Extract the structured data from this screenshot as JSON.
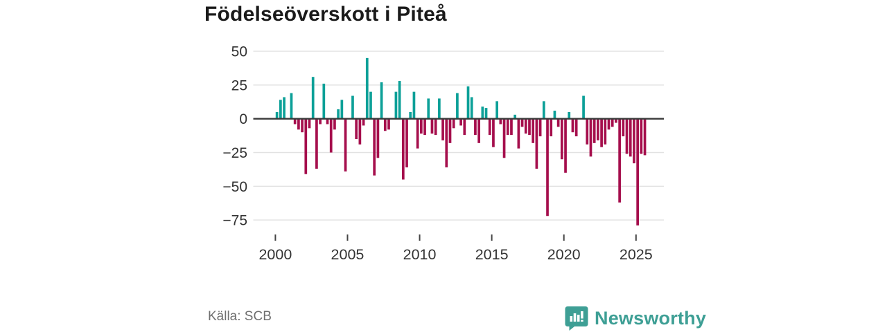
{
  "page": {
    "background": "#ffffff"
  },
  "header": {
    "title": "Födelseöverskott i Piteå"
  },
  "footer": {
    "source_label": "Källa: SCB",
    "brand_name": "Newsworthy",
    "brand_icon": "newsworthy-bar-chart-bubble-icon",
    "brand_color": "#3e9f95"
  },
  "chart_data": {
    "type": "bar",
    "title": "Födelseöverskott i Piteå",
    "grid": "horizontal",
    "legend": "none",
    "positive_color": "#0ca098",
    "negative_color": "#a50e4c",
    "axis_line_color": "#3a3a3a",
    "gridline_color": "#e2e2e2",
    "tick_label_color": "#333333",
    "ylim": [
      -85,
      55
    ],
    "y_ticks": [
      50,
      25,
      0,
      -25,
      -50,
      -75
    ],
    "y_tick_labels": [
      "50",
      "25",
      "0",
      "−25",
      "−50",
      "−75"
    ],
    "x_ticks": [
      2000,
      2005,
      2010,
      2015,
      2020,
      2025
    ],
    "x_tick_labels": [
      "2000",
      "2005",
      "2010",
      "2015",
      "2020",
      "2025"
    ],
    "categories": [
      "2000Q1",
      "2000Q2",
      "2000Q3",
      "2000Q4",
      "2001Q1",
      "2001Q2",
      "2001Q3",
      "2001Q4",
      "2002Q1",
      "2002Q2",
      "2002Q3",
      "2002Q4",
      "2003Q1",
      "2003Q2",
      "2003Q3",
      "2003Q4",
      "2004Q1",
      "2004Q2",
      "2004Q3",
      "2004Q4",
      "2005Q1",
      "2005Q2",
      "2005Q3",
      "2005Q4",
      "2006Q1",
      "2006Q2",
      "2006Q3",
      "2006Q4",
      "2007Q1",
      "2007Q2",
      "2007Q3",
      "2007Q4",
      "2008Q1",
      "2008Q2",
      "2008Q3",
      "2008Q4",
      "2009Q1",
      "2009Q2",
      "2009Q3",
      "2009Q4",
      "2010Q1",
      "2010Q2",
      "2010Q3",
      "2010Q4",
      "2011Q1",
      "2011Q2",
      "2011Q3",
      "2011Q4",
      "2012Q1",
      "2012Q2",
      "2012Q3",
      "2012Q4",
      "2013Q1",
      "2013Q2",
      "2013Q3",
      "2013Q4",
      "2014Q1",
      "2014Q2",
      "2014Q3",
      "2014Q4",
      "2015Q1",
      "2015Q2",
      "2015Q3",
      "2015Q4",
      "2016Q1",
      "2016Q2",
      "2016Q3",
      "2016Q4",
      "2017Q1",
      "2017Q2",
      "2017Q3",
      "2017Q4",
      "2018Q1",
      "2018Q2",
      "2018Q3",
      "2018Q4",
      "2019Q1",
      "2019Q2",
      "2019Q3",
      "2019Q4",
      "2020Q1",
      "2020Q2",
      "2020Q3",
      "2020Q4",
      "2021Q1",
      "2021Q2",
      "2021Q3",
      "2021Q4",
      "2022Q1",
      "2022Q2",
      "2022Q3",
      "2022Q4",
      "2023Q1",
      "2023Q2",
      "2023Q3",
      "2023Q4",
      "2024Q1",
      "2024Q2",
      "2024Q3",
      "2024Q4",
      "2025Q1",
      "2025Q2",
      "2025Q3"
    ],
    "values": [
      5,
      14,
      16,
      0,
      19,
      -4,
      -8,
      -10,
      -41,
      -7,
      31,
      -37,
      -4,
      26,
      -4,
      -25,
      -8,
      7,
      14,
      -39,
      0,
      17,
      -15,
      -19,
      -5,
      45,
      20,
      -42,
      -29,
      27,
      -9,
      -8,
      0,
      20,
      28,
      -45,
      -36,
      5,
      20,
      -22,
      -11,
      -12,
      15,
      -11,
      -12,
      15,
      -16,
      -36,
      -18,
      -7,
      19,
      -5,
      -12,
      24,
      16,
      -12,
      -18,
      9,
      8,
      -12,
      -21,
      13,
      -4,
      -29,
      -12,
      -12,
      3,
      -22,
      -6,
      -11,
      -12,
      -18,
      -37,
      -13,
      13,
      -72,
      -13,
      6,
      -6,
      -30,
      -40,
      5,
      -10,
      -13,
      0,
      17,
      -19,
      -28,
      -18,
      -16,
      -21,
      -19,
      -8,
      -6,
      -3,
      -62,
      -13,
      -26,
      -28,
      -33,
      -79,
      -26,
      -27
    ]
  }
}
